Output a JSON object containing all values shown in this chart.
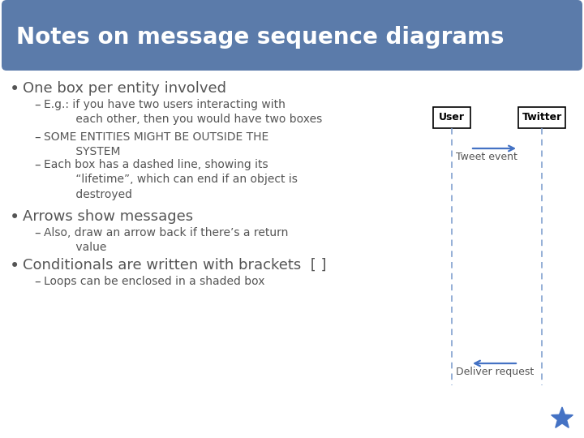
{
  "title": "Notes on message sequence diagrams",
  "title_bg_color": "#5b7baa",
  "title_text_color": "#ffffff",
  "bg_color": "#ffffff",
  "bullet_color": "#555555",
  "diagram_arrow_color": "#4472c4",
  "diagram_dashed_color": "#7799cc",
  "star_color": "#4472c4",
  "user_label": "User",
  "twitter_label": "Twitter",
  "arrow1_label": "Tweet event",
  "arrow2_label": "Deliver request",
  "title_fontsize": 20,
  "bullet_fontsize": 13,
  "sub_fontsize": 10,
  "fig_width": 7.2,
  "fig_height": 5.4,
  "fig_dpi": 100
}
